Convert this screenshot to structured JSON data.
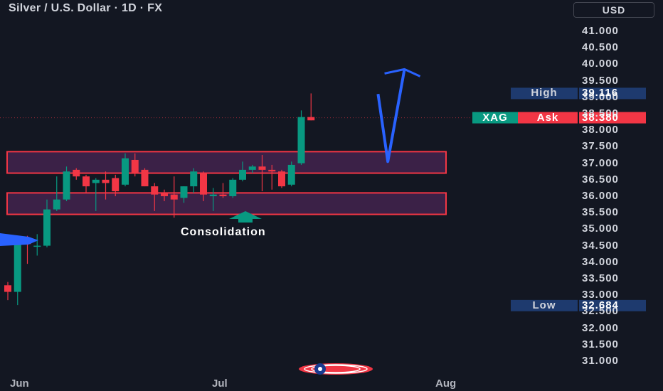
{
  "header": {
    "title": "Silver / U.S. Dollar · 1D · FX",
    "currency": "USD"
  },
  "colors": {
    "background": "#131722",
    "up": "#089981",
    "down": "#f23645",
    "zone_fill": "#3b2147",
    "zone_border": "#f23645",
    "arrow": "#2962ff",
    "high_tag_bg": "#1e3a6e",
    "ask_tag_bg": "#f23645",
    "xag_tag_bg": "#089981"
  },
  "tags": {
    "high": {
      "label": "High",
      "value": "39.116"
    },
    "ask": {
      "symbol": "XAG",
      "label": "Ask",
      "value": "38.380"
    },
    "low": {
      "label": "Low",
      "value": "32.684"
    }
  },
  "annotation": {
    "text": "Consolidation"
  },
  "chart_data": {
    "type": "candlestick",
    "title": "Silver / U.S. Dollar · 1D · FX",
    "x_labels": [
      "Jun",
      "Jul",
      "Aug"
    ],
    "y_ticks": [
      "41.000",
      "40.500",
      "40.000",
      "39.500",
      "39.000",
      "38.500",
      "38.000",
      "37.500",
      "37.000",
      "36.500",
      "36.000",
      "35.500",
      "35.000",
      "34.500",
      "34.000",
      "33.500",
      "33.000",
      "32.500",
      "32.000",
      "31.500",
      "31.000"
    ],
    "ylim": [
      30.7,
      41.9
    ],
    "candles": [
      {
        "o": 33.3,
        "h": 33.4,
        "l": 32.85,
        "c": 33.1
      },
      {
        "o": 33.1,
        "h": 34.8,
        "l": 32.7,
        "c": 34.75
      },
      {
        "o": 34.75,
        "h": 34.8,
        "l": 33.95,
        "c": 34.55
      },
      {
        "o": 34.5,
        "h": 34.85,
        "l": 34.2,
        "c": 34.5
      },
      {
        "o": 34.5,
        "h": 35.9,
        "l": 34.45,
        "c": 35.6
      },
      {
        "o": 35.6,
        "h": 36.6,
        "l": 35.55,
        "c": 35.9
      },
      {
        "o": 35.9,
        "h": 36.9,
        "l": 35.85,
        "c": 36.75
      },
      {
        "o": 36.8,
        "h": 36.85,
        "l": 36.5,
        "c": 36.6
      },
      {
        "o": 36.6,
        "h": 36.65,
        "l": 36.1,
        "c": 36.3
      },
      {
        "o": 36.4,
        "h": 36.55,
        "l": 35.55,
        "c": 36.5
      },
      {
        "o": 36.5,
        "h": 36.75,
        "l": 35.9,
        "c": 36.4
      },
      {
        "o": 36.55,
        "h": 36.65,
        "l": 36.0,
        "c": 36.15
      },
      {
        "o": 36.35,
        "h": 37.3,
        "l": 36.3,
        "c": 37.15
      },
      {
        "o": 37.1,
        "h": 37.3,
        "l": 36.6,
        "c": 36.7
      },
      {
        "o": 36.8,
        "h": 36.85,
        "l": 36.3,
        "c": 36.3
      },
      {
        "o": 36.3,
        "h": 36.4,
        "l": 35.55,
        "c": 36.05
      },
      {
        "o": 36.1,
        "h": 36.2,
        "l": 35.85,
        "c": 36.0
      },
      {
        "o": 36.05,
        "h": 36.6,
        "l": 35.35,
        "c": 35.9
      },
      {
        "o": 35.95,
        "h": 36.3,
        "l": 35.8,
        "c": 36.3
      },
      {
        "o": 36.3,
        "h": 36.85,
        "l": 36.1,
        "c": 36.75
      },
      {
        "o": 36.7,
        "h": 36.75,
        "l": 35.85,
        "c": 36.05
      },
      {
        "o": 36.0,
        "h": 36.25,
        "l": 35.55,
        "c": 36.05
      },
      {
        "o": 36.05,
        "h": 36.4,
        "l": 35.95,
        "c": 36.0
      },
      {
        "o": 36.0,
        "h": 36.55,
        "l": 35.95,
        "c": 36.5
      },
      {
        "o": 36.5,
        "h": 37.05,
        "l": 36.45,
        "c": 36.8
      },
      {
        "o": 36.8,
        "h": 36.95,
        "l": 36.7,
        "c": 36.9
      },
      {
        "o": 36.9,
        "h": 37.25,
        "l": 36.15,
        "c": 36.8
      },
      {
        "o": 36.8,
        "h": 36.95,
        "l": 36.2,
        "c": 36.75
      },
      {
        "o": 36.75,
        "h": 36.8,
        "l": 36.25,
        "c": 36.3
      },
      {
        "o": 36.35,
        "h": 37.05,
        "l": 36.3,
        "c": 36.95
      },
      {
        "o": 37.0,
        "h": 38.6,
        "l": 36.95,
        "c": 38.4
      },
      {
        "o": 38.4,
        "h": 39.116,
        "l": 38.3,
        "c": 38.3
      }
    ],
    "zones": [
      {
        "name": "upper",
        "top": 37.35,
        "bottom": 36.7
      },
      {
        "name": "lower",
        "top": 36.1,
        "bottom": 35.45
      }
    ],
    "projection": [
      [
        37.85,
        39.1
      ],
      [
        38.85,
        37.05
      ],
      [
        40.55,
        39.85
      ]
    ]
  }
}
